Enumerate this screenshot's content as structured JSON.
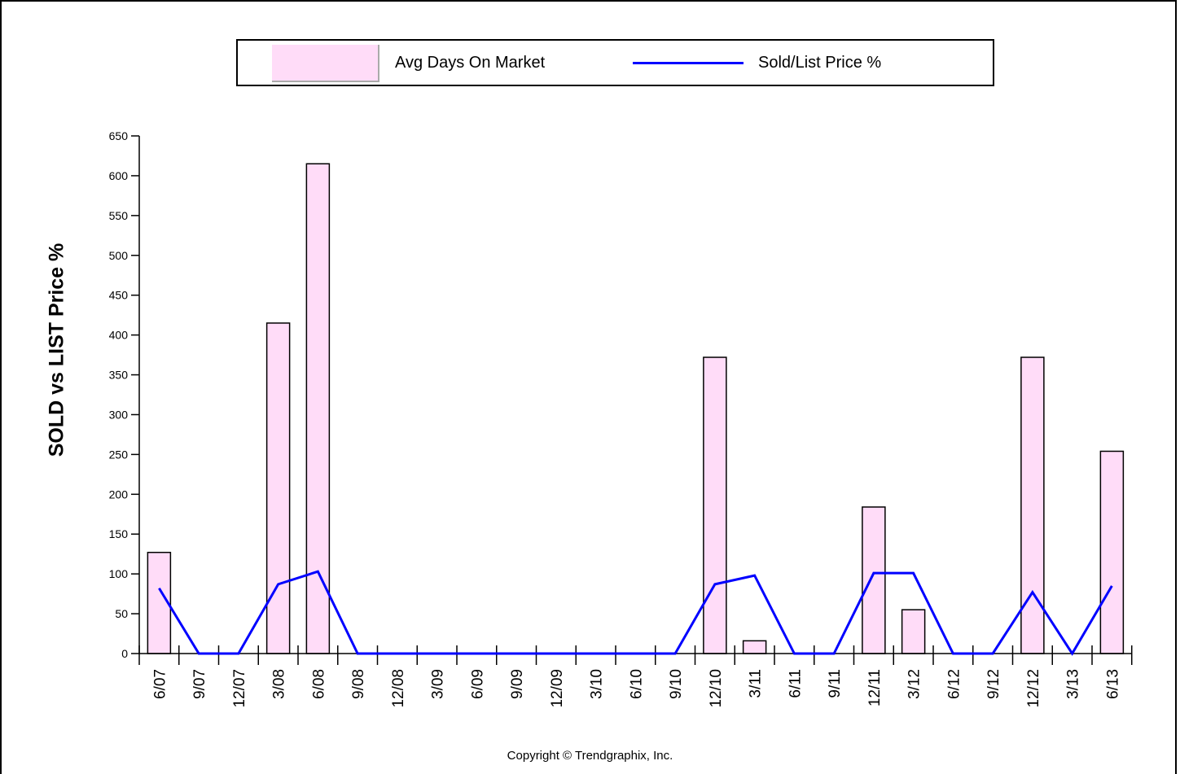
{
  "chart_data": {
    "type": "bar",
    "title": "",
    "ylabel": "SOLD vs LIST Price %",
    "xlabel": "",
    "ylim": [
      0,
      650
    ],
    "yticks": [
      0,
      50,
      100,
      150,
      200,
      250,
      300,
      350,
      400,
      450,
      500,
      550,
      600,
      650
    ],
    "grid": false,
    "legend_position": "top",
    "categories": [
      "6/07",
      "9/07",
      "12/07",
      "3/08",
      "6/08",
      "9/08",
      "12/08",
      "3/09",
      "6/09",
      "9/09",
      "12/09",
      "3/10",
      "6/10",
      "9/10",
      "12/10",
      "3/11",
      "6/11",
      "9/11",
      "12/11",
      "3/12",
      "6/12",
      "9/12",
      "12/12",
      "3/13",
      "6/13"
    ],
    "series": [
      {
        "name": "Avg Days On Market",
        "kind": "bar",
        "color": "#ffdcf8",
        "values": [
          127,
          0,
          0,
          415,
          615,
          0,
          0,
          0,
          0,
          0,
          0,
          0,
          0,
          0,
          372,
          16,
          0,
          0,
          184,
          55,
          0,
          0,
          372,
          0,
          254
        ]
      },
      {
        "name": "Sold/List Price %",
        "kind": "line",
        "color": "#0000ff",
        "values": [
          82,
          0,
          0,
          87,
          103,
          0,
          0,
          0,
          0,
          0,
          0,
          0,
          0,
          0,
          87,
          98,
          0,
          0,
          101,
          101,
          0,
          0,
          77,
          0,
          85
        ]
      }
    ]
  },
  "copyright": "Copyright © Trendgraphix, Inc."
}
